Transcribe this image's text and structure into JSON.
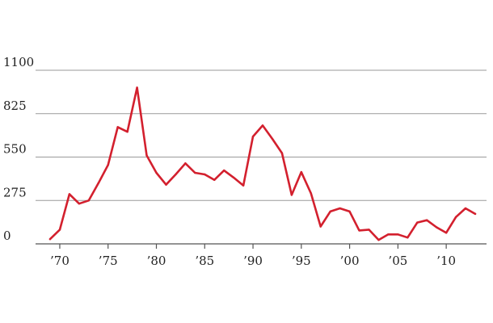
{
  "chart_data": {
    "type": "line",
    "title": "",
    "xlabel": "",
    "ylabel": "",
    "grid": true,
    "legend": "none",
    "xlim": [
      1969,
      2014
    ],
    "ylim": [
      0,
      1100
    ],
    "y_ticks": [
      {
        "value": 0,
        "label": "0"
      },
      {
        "value": 275,
        "label": "275"
      },
      {
        "value": 550,
        "label": "550"
      },
      {
        "value": 825,
        "label": "825"
      },
      {
        "value": 1100,
        "label": "1100"
      }
    ],
    "x_ticks": [
      {
        "value": 1970,
        "label": "’70"
      },
      {
        "value": 1975,
        "label": "’75"
      },
      {
        "value": 1980,
        "label": "’80"
      },
      {
        "value": 1985,
        "label": "’85"
      },
      {
        "value": 1990,
        "label": "’90"
      },
      {
        "value": 1995,
        "label": "’95"
      },
      {
        "value": 2000,
        "label": "’00"
      },
      {
        "value": 2005,
        "label": "’05"
      },
      {
        "value": 2010,
        "label": "’10"
      }
    ],
    "series": [
      {
        "color": "#d3202e",
        "x": [
          1969,
          1970,
          1971,
          1972,
          1973,
          1974,
          1975,
          1976,
          1977,
          1978,
          1979,
          1980,
          1981,
          1982,
          1983,
          1984,
          1985,
          1986,
          1987,
          1988,
          1989,
          1990,
          1991,
          1992,
          1993,
          1994,
          1995,
          1996,
          1997,
          1998,
          1999,
          2000,
          2001,
          2002,
          2003,
          2004,
          2005,
          2006,
          2007,
          2008,
          2009,
          2010,
          2011,
          2012,
          2013
        ],
        "values": [
          30,
          90,
          315,
          255,
          275,
          385,
          500,
          740,
          710,
          990,
          560,
          450,
          375,
          440,
          510,
          450,
          440,
          405,
          465,
          420,
          370,
          680,
          750,
          665,
          575,
          310,
          455,
          320,
          110,
          205,
          225,
          205,
          85,
          90,
          25,
          60,
          60,
          40,
          135,
          150,
          105,
          70,
          170,
          225,
          190
        ]
      }
    ]
  }
}
